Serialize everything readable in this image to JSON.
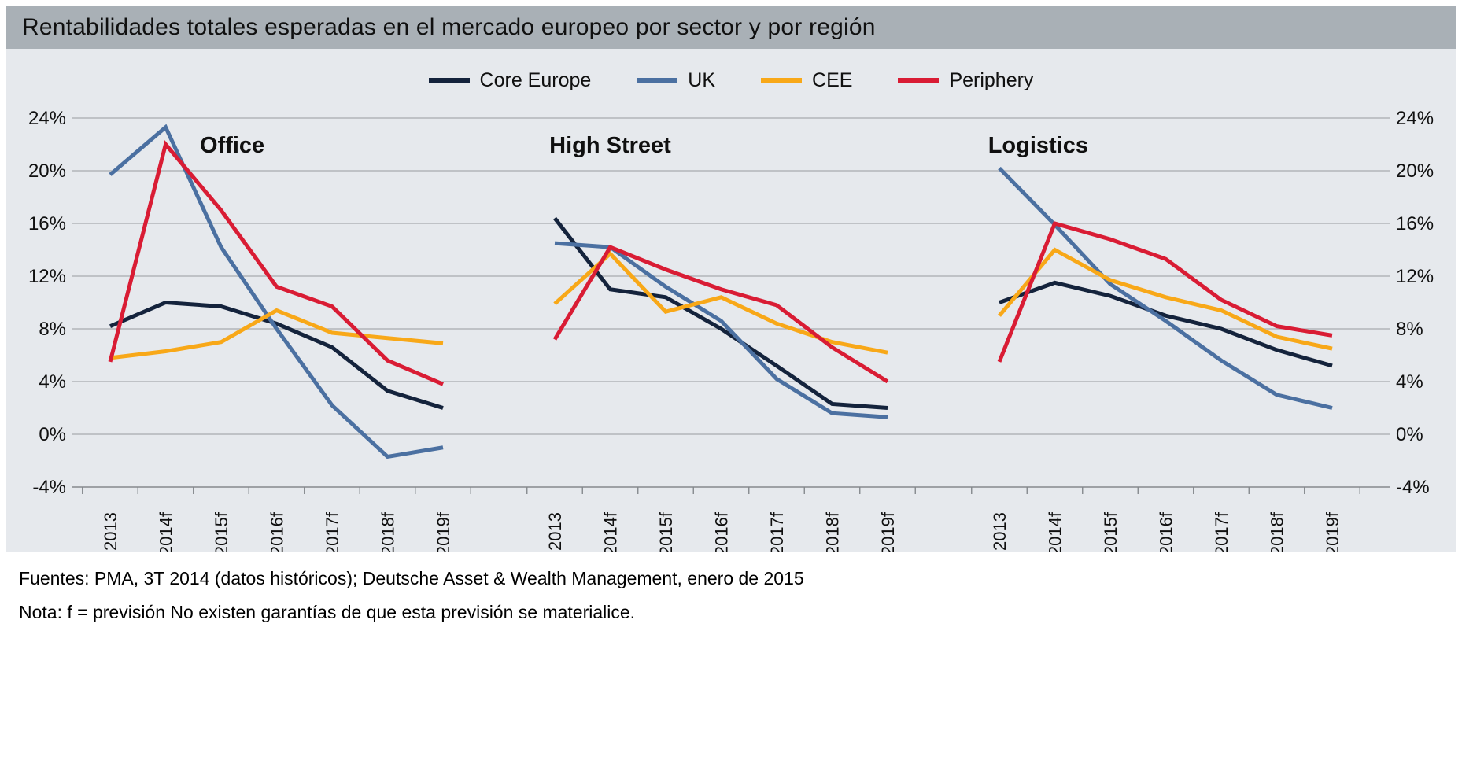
{
  "title": "Rentabilidades totales esperadas en el mercado europeo por sector y por región",
  "footer": {
    "sources": "Fuentes: PMA, 3T 2014 (datos históricos); Deutsche Asset & Wealth Management, enero de 2015",
    "note": "Nota: f = previsión No existen garantías de que esta previsión se materialice."
  },
  "colors": {
    "title_bar": "#a9b0b6",
    "chart_background": "#e6e9ed",
    "gridline": "#a8acb0",
    "axis": "#85898d",
    "text": "#101010"
  },
  "chart_data": {
    "type": "line",
    "categories": [
      "2013",
      "2014f",
      "2015f",
      "2016f",
      "2017f",
      "2018f",
      "2019f"
    ],
    "ylim": [
      -4,
      24
    ],
    "ytick_step": 4,
    "ytick_labels": [
      "24%",
      "20%",
      "16%",
      "12%",
      "8%",
      "4%",
      "0%",
      "-4%"
    ],
    "grid": "horizontal",
    "legend_position": "top-center",
    "series": [
      {
        "name": "Core Europe",
        "color": "#14233c"
      },
      {
        "name": "UK",
        "color": "#4b70a1"
      },
      {
        "name": "CEE",
        "color": "#f8a818"
      },
      {
        "name": "Periphery",
        "color": "#d91c34"
      }
    ],
    "panels": [
      {
        "title": "Office",
        "values": {
          "Core Europe": [
            8.2,
            10.0,
            9.7,
            8.4,
            6.6,
            3.3,
            2.0
          ],
          "UK": [
            19.7,
            23.3,
            14.2,
            8.0,
            2.2,
            -1.7,
            -1.0
          ],
          "CEE": [
            5.8,
            6.3,
            7.0,
            9.4,
            7.7,
            7.3,
            6.9
          ],
          "Periphery": [
            5.5,
            22.0,
            17.0,
            11.2,
            9.7,
            5.6,
            3.8
          ]
        }
      },
      {
        "title": "High Street",
        "values": {
          "Core Europe": [
            16.4,
            11.0,
            10.4,
            8.0,
            5.2,
            2.3,
            2.0
          ],
          "UK": [
            14.5,
            14.2,
            11.2,
            8.6,
            4.2,
            1.6,
            1.3
          ],
          "CEE": [
            9.9,
            13.7,
            9.3,
            10.4,
            8.4,
            7.0,
            6.2
          ],
          "Periphery": [
            7.2,
            14.2,
            12.5,
            11.0,
            9.8,
            6.6,
            4.0
          ]
        }
      },
      {
        "title": "Logistics",
        "values": {
          "Core Europe": [
            10.0,
            11.5,
            10.5,
            9.0,
            8.0,
            6.4,
            5.2
          ],
          "UK": [
            20.2,
            15.9,
            11.4,
            8.6,
            5.6,
            3.0,
            2.0
          ],
          "CEE": [
            9.0,
            14.0,
            11.7,
            10.4,
            9.4,
            7.4,
            6.5
          ],
          "Periphery": [
            5.5,
            16.0,
            14.8,
            13.3,
            10.2,
            8.2,
            7.5
          ]
        }
      }
    ]
  }
}
